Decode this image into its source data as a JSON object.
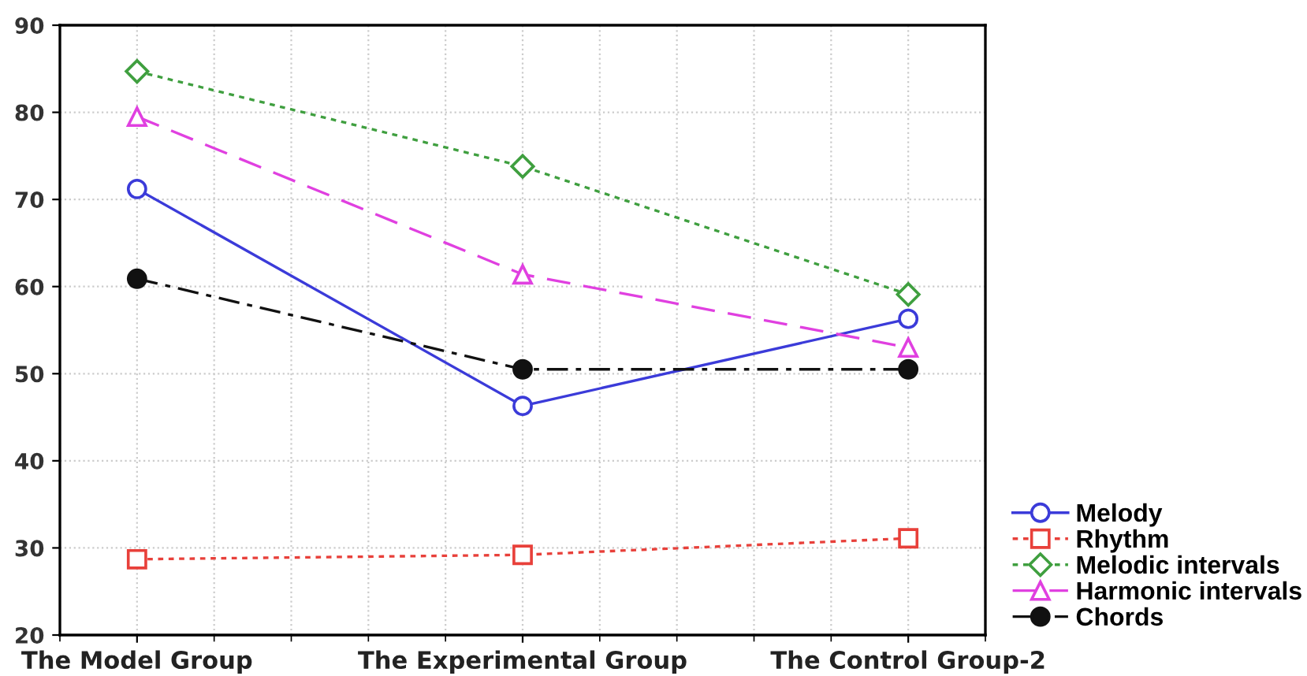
{
  "chart_data": {
    "type": "line",
    "categories": [
      "The Model Group",
      "The Experimental Group",
      "The Control Group-2"
    ],
    "ylim": [
      20,
      90
    ],
    "yticks": [
      20,
      30,
      40,
      50,
      60,
      70,
      80,
      90
    ],
    "grid": true,
    "legend": "bottom right",
    "series": [
      {
        "name": "Melody",
        "color": "#3b3bd9",
        "values": [
          71.2,
          46.3,
          56.3
        ],
        "marker": "circle",
        "line_style": "solid"
      },
      {
        "name": "Rhythm",
        "color": "#e8403a",
        "values": [
          28.7,
          29.2,
          31.1
        ],
        "marker": "square",
        "line_style": "dotted"
      },
      {
        "name": "Melodic intervals",
        "color": "#3f9f3f",
        "values": [
          84.7,
          73.8,
          59.1
        ],
        "marker": "diamond",
        "line_style": "dotted"
      },
      {
        "name": "Harmonic intervals",
        "color": "#e040e0",
        "values": [
          79.5,
          61.4,
          53.0
        ],
        "marker": "triangle",
        "line_style": "dashed"
      },
      {
        "name": "Chords",
        "color": "#111111",
        "values": [
          60.9,
          50.5,
          50.5
        ],
        "marker": "dot",
        "line_style": "dashdot"
      }
    ]
  }
}
